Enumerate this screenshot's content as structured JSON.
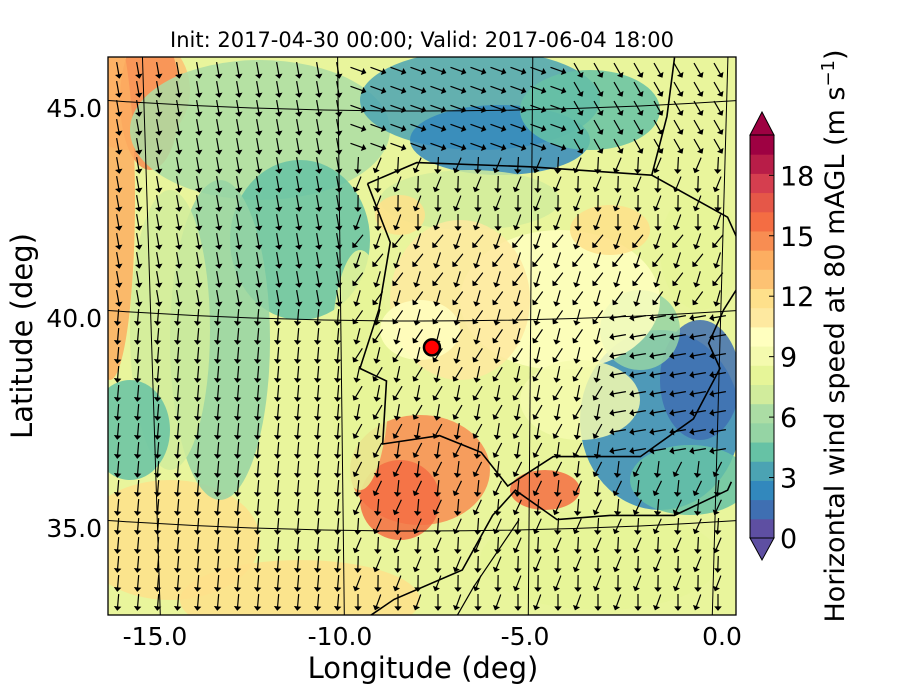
{
  "chart_data": {
    "type": "heatmap",
    "title": "Init: 2017-04-30 00:00; Valid: 2017-06-04 18:00",
    "xlabel": "Longitude (deg)",
    "ylabel": "Latitude (deg)",
    "x_ticks": [
      "-15.0",
      "-10.0",
      "-5.0",
      "0.0"
    ],
    "y_ticks": [
      "35.0",
      "40.0",
      "45.0"
    ],
    "colorbar": {
      "label": "Horizontal wind speed at 80 mAGL (m s",
      "label_superscript": "−1",
      "label_close": ")",
      "ticks": [
        "0",
        "3",
        "6",
        "9",
        "12",
        "15",
        "18"
      ],
      "range": [
        0,
        20
      ],
      "extend": "both",
      "colormap": "Spectral_r",
      "colors": [
        "#5e4fa2",
        "#3f6fb2",
        "#3288bd",
        "#4ba3b3",
        "#66c2a5",
        "#95d4a4",
        "#abdda4",
        "#d1ec9c",
        "#e6f598",
        "#f4faae",
        "#ffffbf",
        "#fee9a0",
        "#fee08b",
        "#fdc273",
        "#fdae61",
        "#f88d52",
        "#f46d43",
        "#e55748",
        "#d53e4f",
        "#b81d48",
        "#9e0142"
      ]
    },
    "grid": true,
    "marker": {
      "lon": -7.6,
      "lat": 39.3,
      "color": "#ff0000"
    },
    "vectors": "wind direction arrows on regular grid"
  }
}
